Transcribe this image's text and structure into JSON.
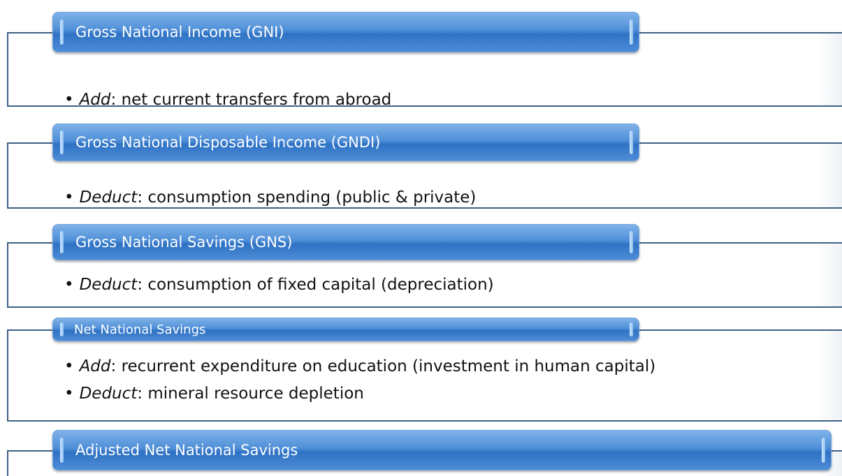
{
  "sections": [
    {
      "title": "Gross National Income (GNI)",
      "items": [
        {
          "verb": "Add",
          "text": ": net current transfers from abroad"
        }
      ]
    },
    {
      "title": "Gross National Disposable Income (GNDI)",
      "items": [
        {
          "verb": "Deduct",
          "text": ": consumption spending (public & private)"
        }
      ]
    },
    {
      "title": "Gross National Savings (GNS)",
      "items": [
        {
          "verb": "Deduct",
          "text": ": consumption of fixed capital (depreciation)"
        }
      ]
    },
    {
      "title": "Net National Savings",
      "items": [
        {
          "verb": "Add",
          "text": ": recurrent expenditure on education (investment in human capital)"
        },
        {
          "verb": "Deduct",
          "text": ": mineral resource depletion"
        }
      ]
    },
    {
      "title": "Adjusted Net National Savings",
      "items": []
    }
  ]
}
